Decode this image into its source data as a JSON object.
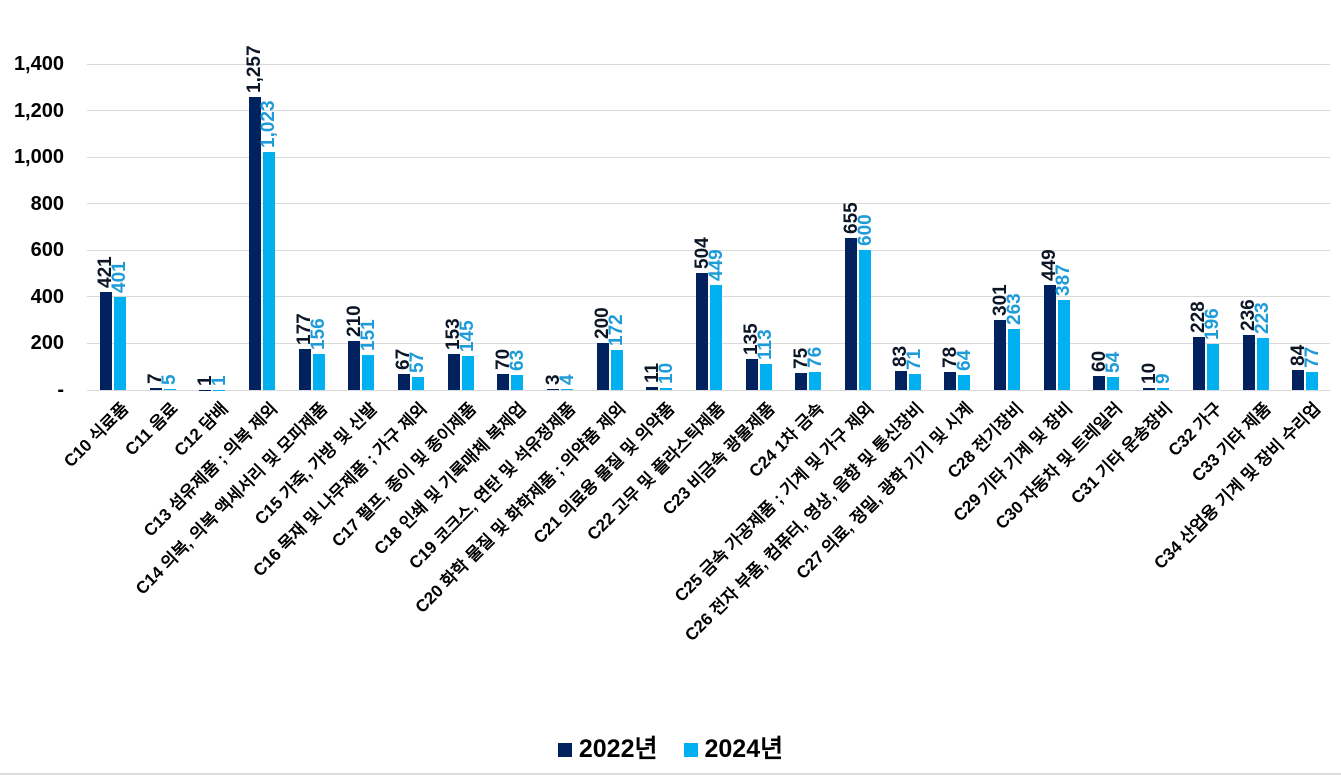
{
  "chart_data": {
    "type": "bar",
    "title": "",
    "xlabel": "",
    "ylabel": "",
    "categories": [
      "C10 식료품",
      "C11 음료",
      "C12 담배",
      "C13 섬유제품 ; 의복 제외",
      "C14 의복, 의복 액세서리 및 모피제품",
      "C15 가죽, 가방 및 신발",
      "C16 목재 및 나무제품 ; 가구 제외",
      "C17 펄프, 종이 및 종이제품",
      "C18 인쇄 및 기록매체 복제업",
      "C19 코크스, 연탄 및 석유정제품",
      "C20 화학 물질 및 화학제품 ; 의약품 제외",
      "C21 의료용 물질 및 의약품",
      "C22 고무 및 플라스틱제품",
      "C23 비금속 광물제품",
      "C24 1차 금속",
      "C25 금속 가공제품 ; 기계 및 가구 제외",
      "C26 전자 부품, 컴퓨터, 영상, 음향 및 통신장비",
      "C27 의료, 정밀, 광학 기기 및 시계",
      "C28 전기장비",
      "C29 기타 기계 및 장비",
      "C30 자동차 및 트레일러",
      "C31 기타 운송장비",
      "C32 가구",
      "C33 기타 제품",
      "C34 산업용 기계 및 장비 수리업"
    ],
    "series": [
      {
        "name": "2022년",
        "color": "#02215F",
        "label_color": "#0d1626",
        "values": [
          421,
          7,
          1,
          1257,
          177,
          210,
          67,
          153,
          70,
          3,
          200,
          11,
          504,
          135,
          75,
          655,
          83,
          78,
          301,
          449,
          60,
          10,
          228,
          236,
          84
        ]
      },
      {
        "name": "2024년",
        "color": "#00B0F0",
        "label_color": "#1E9CD9",
        "values": [
          401,
          5,
          1,
          1023,
          156,
          151,
          57,
          145,
          63,
          4,
          172,
          10,
          449,
          113,
          76,
          600,
          71,
          64,
          263,
          387,
          54,
          9,
          196,
          223,
          77
        ]
      }
    ],
    "ylim": [
      0,
      1400
    ],
    "ytick_step": 200,
    "ytick_labels": [
      "-",
      "200",
      "400",
      "600",
      "800",
      "1,000",
      "1,200",
      "1,400"
    ],
    "grid": true,
    "gridline_color": "#D9D9D9",
    "legend_position": "bottom"
  }
}
